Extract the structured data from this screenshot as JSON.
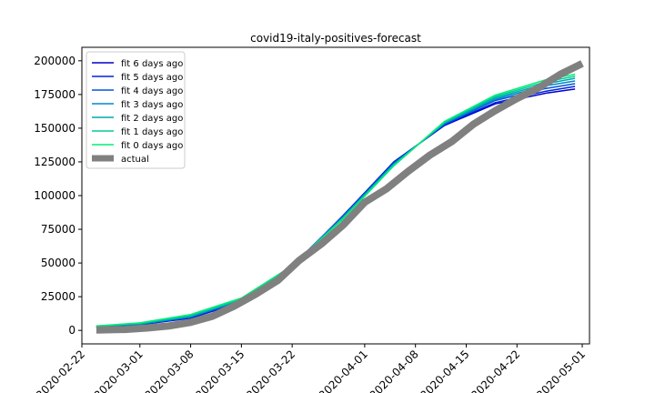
{
  "chart_data": {
    "type": "line",
    "title": "covid19-italy-positives-forecast",
    "xlabel": "",
    "ylabel": "",
    "x_type": "date",
    "xlim": [
      "2020-02-22",
      "2020-05-02"
    ],
    "ylim": [
      -10000,
      210000
    ],
    "xticks": [
      "2020-02-22",
      "2020-03-01",
      "2020-03-08",
      "2020-03-15",
      "2020-03-22",
      "2020-04-01",
      "2020-04-08",
      "2020-04-15",
      "2020-04-22",
      "2020-05-01"
    ],
    "yticks": [
      0,
      25000,
      50000,
      75000,
      100000,
      125000,
      150000,
      175000,
      200000
    ],
    "ytick_labels": [
      "0",
      "25000",
      "50000",
      "75000",
      "100000",
      "125000",
      "150000",
      "175000",
      "200000"
    ],
    "grid": false,
    "legend_position": "top-left",
    "series": [
      {
        "name": "fit 6 days ago",
        "color": "#0000cc",
        "width": 1.5,
        "points": [
          [
            "2020-02-24",
            2800
          ],
          [
            "2020-03-01",
            4200
          ],
          [
            "2020-03-08",
            9000
          ],
          [
            "2020-03-15",
            21000
          ],
          [
            "2020-03-22",
            47000
          ],
          [
            "2020-03-29",
            85000
          ],
          [
            "2020-04-05",
            125000
          ],
          [
            "2020-04-12",
            152000
          ],
          [
            "2020-04-19",
            168000
          ],
          [
            "2020-04-26",
            176000
          ],
          [
            "2020-04-30",
            179000
          ]
        ]
      },
      {
        "name": "fit 5 days ago",
        "color": "#0022dd",
        "width": 1.5,
        "points": [
          [
            "2020-02-24",
            2800
          ],
          [
            "2020-03-01",
            4300
          ],
          [
            "2020-03-08",
            9300
          ],
          [
            "2020-03-15",
            21500
          ],
          [
            "2020-03-22",
            47500
          ],
          [
            "2020-03-29",
            85000
          ],
          [
            "2020-04-05",
            124500
          ],
          [
            "2020-04-12",
            152500
          ],
          [
            "2020-04-19",
            169000
          ],
          [
            "2020-04-26",
            177500
          ],
          [
            "2020-04-30",
            181000
          ]
        ]
      },
      {
        "name": "fit 4 days ago",
        "color": "#0055dd",
        "width": 1.5,
        "points": [
          [
            "2020-02-24",
            2900
          ],
          [
            "2020-03-01",
            4500
          ],
          [
            "2020-03-08",
            9700
          ],
          [
            "2020-03-15",
            22000
          ],
          [
            "2020-03-22",
            48000
          ],
          [
            "2020-03-29",
            84500
          ],
          [
            "2020-04-05",
            124000
          ],
          [
            "2020-04-12",
            153000
          ],
          [
            "2020-04-19",
            170500
          ],
          [
            "2020-04-26",
            179500
          ],
          [
            "2020-04-30",
            183000
          ]
        ]
      },
      {
        "name": "fit 3 days ago",
        "color": "#0088cc",
        "width": 1.5,
        "points": [
          [
            "2020-02-24",
            3000
          ],
          [
            "2020-03-01",
            4700
          ],
          [
            "2020-03-08",
            10100
          ],
          [
            "2020-03-15",
            22500
          ],
          [
            "2020-03-22",
            48000
          ],
          [
            "2020-03-29",
            84000
          ],
          [
            "2020-04-05",
            123500
          ],
          [
            "2020-04-12",
            153500
          ],
          [
            "2020-04-19",
            171500
          ],
          [
            "2020-04-26",
            181500
          ],
          [
            "2020-04-30",
            185000
          ]
        ]
      },
      {
        "name": "fit 2 days ago",
        "color": "#00aaaa",
        "width": 1.5,
        "points": [
          [
            "2020-02-24",
            3100
          ],
          [
            "2020-03-01",
            5000
          ],
          [
            "2020-03-08",
            10600
          ],
          [
            "2020-03-15",
            23000
          ],
          [
            "2020-03-22",
            48000
          ],
          [
            "2020-03-29",
            83500
          ],
          [
            "2020-04-05",
            123000
          ],
          [
            "2020-04-12",
            154000
          ],
          [
            "2020-04-19",
            172500
          ],
          [
            "2020-04-26",
            183000
          ],
          [
            "2020-04-30",
            187000
          ]
        ]
      },
      {
        "name": "fit 1 days ago",
        "color": "#00cc99",
        "width": 1.5,
        "points": [
          [
            "2020-02-24",
            3200
          ],
          [
            "2020-03-01",
            5300
          ],
          [
            "2020-03-08",
            11200
          ],
          [
            "2020-03-15",
            23500
          ],
          [
            "2020-03-22",
            48000
          ],
          [
            "2020-03-29",
            83000
          ],
          [
            "2020-04-05",
            122500
          ],
          [
            "2020-04-12",
            154500
          ],
          [
            "2020-04-19",
            173500
          ],
          [
            "2020-04-26",
            184500
          ],
          [
            "2020-04-30",
            188500
          ]
        ]
      },
      {
        "name": "fit 0 days ago",
        "color": "#00ee77",
        "width": 1.5,
        "points": [
          [
            "2020-02-24",
            3300
          ],
          [
            "2020-03-01",
            5600
          ],
          [
            "2020-03-08",
            11800
          ],
          [
            "2020-03-15",
            24000
          ],
          [
            "2020-03-22",
            48000
          ],
          [
            "2020-03-29",
            82500
          ],
          [
            "2020-04-05",
            122000
          ],
          [
            "2020-04-12",
            155000
          ],
          [
            "2020-04-19",
            174500
          ],
          [
            "2020-04-26",
            186000
          ],
          [
            "2020-04-30",
            190000
          ]
        ]
      },
      {
        "name": "actual",
        "color": "#808080",
        "width": 8,
        "points": [
          [
            "2020-02-24",
            300
          ],
          [
            "2020-02-28",
            700
          ],
          [
            "2020-03-02",
            1800
          ],
          [
            "2020-03-05",
            3300
          ],
          [
            "2020-03-08",
            6000
          ],
          [
            "2020-03-11",
            10500
          ],
          [
            "2020-03-14",
            18000
          ],
          [
            "2020-03-17",
            27000
          ],
          [
            "2020-03-20",
            37000
          ],
          [
            "2020-03-23",
            52000
          ],
          [
            "2020-03-26",
            64000
          ],
          [
            "2020-03-29",
            78000
          ],
          [
            "2020-04-01",
            95000
          ],
          [
            "2020-04-04",
            105000
          ],
          [
            "2020-04-07",
            118000
          ],
          [
            "2020-04-10",
            130000
          ],
          [
            "2020-04-13",
            140000
          ],
          [
            "2020-04-16",
            153000
          ],
          [
            "2020-04-19",
            163000
          ],
          [
            "2020-04-22",
            172000
          ],
          [
            "2020-04-25",
            180000
          ],
          [
            "2020-04-28",
            190000
          ],
          [
            "2020-05-01",
            198000
          ]
        ]
      }
    ]
  }
}
